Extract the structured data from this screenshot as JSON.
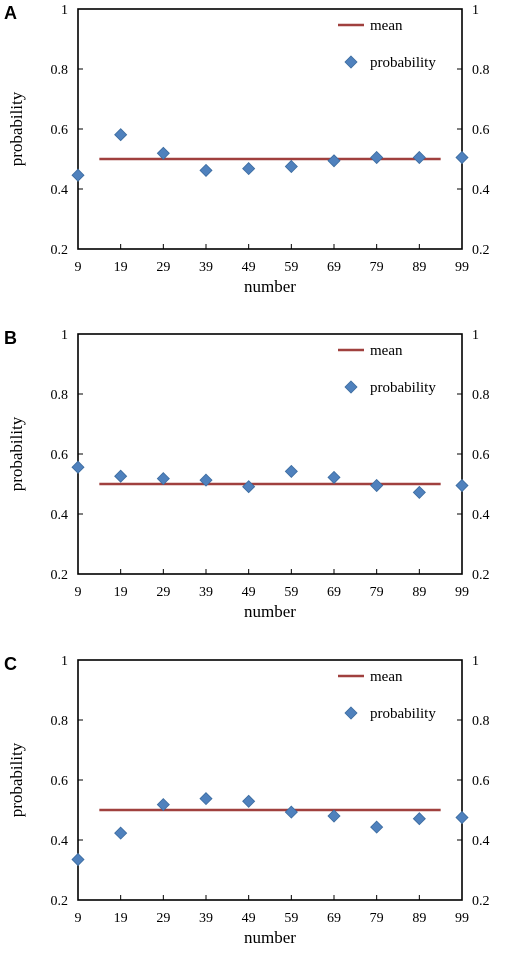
{
  "colors": {
    "mean_line": "#A0403E",
    "points": "#4F81BD",
    "points_edge": "#3A6A9E"
  },
  "chart_data": [
    {
      "panel": "A",
      "type": "scatter",
      "xlabel": "number",
      "ylabel": "probability",
      "x_ticks": [
        9,
        19,
        29,
        39,
        49,
        59,
        69,
        79,
        89,
        99
      ],
      "y_ticks": [
        "0.2",
        "0.4",
        "0.6",
        "0.8",
        "1"
      ],
      "right_y_ticks": [
        "0.2",
        "0.4",
        "0.6",
        "0.8",
        "1"
      ],
      "ylim": [
        0.2,
        1.0
      ],
      "grid": false,
      "legend_placement": "top-right",
      "series": [
        {
          "name": "mean",
          "kind": "line",
          "x": [
            14,
            94
          ],
          "y": [
            0.5,
            0.5
          ]
        },
        {
          "name": "probability",
          "kind": "marker",
          "x": [
            9,
            19,
            29,
            39,
            49,
            59,
            69,
            79,
            89,
            99
          ],
          "y": [
            0.446,
            0.581,
            0.519,
            0.462,
            0.468,
            0.475,
            0.494,
            0.505,
            0.505,
            0.505
          ]
        }
      ]
    },
    {
      "panel": "B",
      "type": "scatter",
      "xlabel": "number",
      "ylabel": "probability",
      "x_ticks": [
        9,
        19,
        29,
        39,
        49,
        59,
        69,
        79,
        89,
        99
      ],
      "y_ticks": [
        "0.2",
        "0.4",
        "0.6",
        "0.8",
        "1"
      ],
      "right_y_ticks": [
        "0.2",
        "0.4",
        "0.6",
        "0.8",
        "1"
      ],
      "ylim": [
        0.2,
        1.0
      ],
      "grid": false,
      "legend_placement": "top-right",
      "series": [
        {
          "name": "mean",
          "kind": "line",
          "x": [
            14,
            94
          ],
          "y": [
            0.5,
            0.5
          ]
        },
        {
          "name": "probability",
          "kind": "marker",
          "x": [
            9,
            19,
            29,
            39,
            49,
            59,
            69,
            79,
            89,
            99
          ],
          "y": [
            0.556,
            0.526,
            0.518,
            0.513,
            0.491,
            0.542,
            0.522,
            0.495,
            0.472,
            0.495
          ]
        }
      ]
    },
    {
      "panel": "C",
      "type": "scatter",
      "xlabel": "number",
      "ylabel": "probability",
      "x_ticks": [
        9,
        19,
        29,
        39,
        49,
        59,
        69,
        79,
        89,
        99
      ],
      "y_ticks": [
        "0.2",
        "0.4",
        "0.6",
        "0.8",
        "1"
      ],
      "right_y_ticks": [
        "0.2",
        "0.4",
        "0.6",
        "0.8",
        "1"
      ],
      "ylim": [
        0.2,
        1.0
      ],
      "grid": false,
      "legend_placement": "top-right",
      "series": [
        {
          "name": "mean",
          "kind": "line",
          "x": [
            14,
            94
          ],
          "y": [
            0.5,
            0.5
          ]
        },
        {
          "name": "probability",
          "kind": "marker",
          "x": [
            9,
            19,
            29,
            39,
            49,
            59,
            69,
            79,
            89,
            99
          ],
          "y": [
            0.335,
            0.423,
            0.518,
            0.538,
            0.529,
            0.493,
            0.48,
            0.443,
            0.471,
            0.475
          ]
        }
      ]
    }
  ]
}
